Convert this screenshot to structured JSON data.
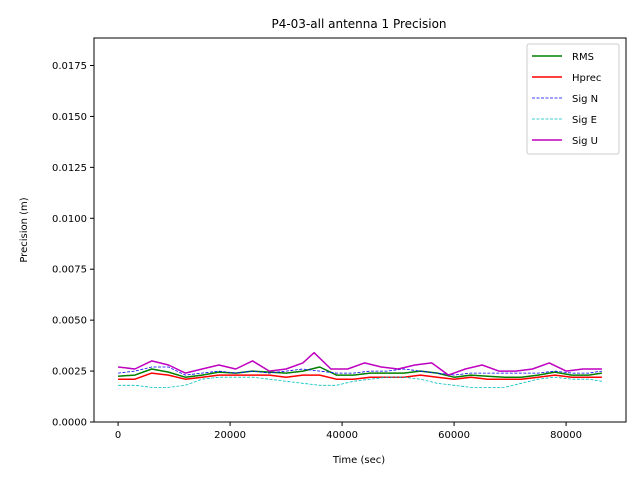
{
  "chart_data": {
    "type": "line",
    "title": "P4-03-all antenna 1 Precision",
    "xlabel": "Time (sec)",
    "ylabel": "Precision (m)",
    "xlim": [
      -4300,
      90700
    ],
    "ylim": [
      0,
      0.01885
    ],
    "xticks": [
      0,
      20000,
      40000,
      60000,
      80000
    ],
    "xtick_labels": [
      "0",
      "20000",
      "40000",
      "60000",
      "80000"
    ],
    "yticks": [
      0,
      0.0025,
      0.005,
      0.0075,
      0.01,
      0.0125,
      0.015,
      0.0175
    ],
    "ytick_labels": [
      "0.0000",
      "0.0025",
      "0.0050",
      "0.0075",
      "0.0100",
      "0.0125",
      "0.0150",
      "0.0175"
    ],
    "grid": false,
    "legend_position": "top-right",
    "series": [
      {
        "name": "RMS",
        "color": "#008000",
        "style": "solid",
        "width": 1.5,
        "x": [
          0,
          3000,
          6000,
          9000,
          12000,
          15000,
          18000,
          21000,
          24000,
          27000,
          30000,
          33000,
          36000,
          39000,
          42000,
          45000,
          48000,
          51000,
          54000,
          57000,
          60000,
          63000,
          66000,
          69000,
          72000,
          75000,
          78000,
          81000,
          84000,
          86400
        ],
        "y": [
          0.00225,
          0.0023,
          0.0026,
          0.00245,
          0.0022,
          0.0023,
          0.00245,
          0.0024,
          0.0025,
          0.00245,
          0.0024,
          0.0025,
          0.0027,
          0.0023,
          0.0023,
          0.0024,
          0.0024,
          0.0024,
          0.0025,
          0.0024,
          0.0022,
          0.0023,
          0.00225,
          0.0022,
          0.0022,
          0.0023,
          0.00245,
          0.0023,
          0.0023,
          0.0024
        ]
      },
      {
        "name": "Hprec",
        "color": "#ff0000",
        "style": "solid",
        "width": 1.5,
        "x": [
          0,
          3000,
          6000,
          9000,
          12000,
          15000,
          18000,
          21000,
          24000,
          27000,
          30000,
          33000,
          36000,
          39000,
          42000,
          45000,
          48000,
          51000,
          54000,
          57000,
          60000,
          63000,
          66000,
          69000,
          72000,
          75000,
          78000,
          81000,
          84000,
          86400
        ],
        "y": [
          0.0021,
          0.0021,
          0.0024,
          0.0023,
          0.0021,
          0.0022,
          0.0023,
          0.0023,
          0.0023,
          0.0023,
          0.0022,
          0.0023,
          0.0023,
          0.0021,
          0.0021,
          0.0022,
          0.0022,
          0.0022,
          0.0023,
          0.0022,
          0.0021,
          0.0022,
          0.0021,
          0.0021,
          0.0021,
          0.0022,
          0.0023,
          0.0022,
          0.0022,
          0.0022
        ]
      },
      {
        "name": "Sig N",
        "color": "#0000ff",
        "style": "dashed",
        "width": 0.8,
        "x": [
          0,
          3000,
          6000,
          9000,
          12000,
          15000,
          18000,
          21000,
          24000,
          27000,
          30000,
          33000,
          36000,
          39000,
          42000,
          45000,
          48000,
          51000,
          54000,
          57000,
          60000,
          63000,
          66000,
          69000,
          72000,
          75000,
          78000,
          81000,
          84000,
          86400
        ],
        "y": [
          0.0024,
          0.0025,
          0.0027,
          0.0027,
          0.0023,
          0.0024,
          0.0025,
          0.0024,
          0.0025,
          0.0024,
          0.0025,
          0.0026,
          0.0025,
          0.0024,
          0.0024,
          0.0025,
          0.0025,
          0.0026,
          0.0025,
          0.0024,
          0.0023,
          0.0024,
          0.0024,
          0.0024,
          0.0024,
          0.0024,
          0.0025,
          0.0024,
          0.0024,
          0.0025
        ]
      },
      {
        "name": "Sig E",
        "color": "#00bfbf",
        "style": "dashed",
        "width": 0.8,
        "x": [
          0,
          3000,
          6000,
          9000,
          12000,
          15000,
          18000,
          21000,
          24000,
          27000,
          30000,
          33000,
          36000,
          39000,
          42000,
          45000,
          48000,
          51000,
          54000,
          57000,
          60000,
          63000,
          66000,
          69000,
          72000,
          75000,
          78000,
          81000,
          84000,
          86400
        ],
        "y": [
          0.0018,
          0.0018,
          0.0017,
          0.0017,
          0.0018,
          0.0021,
          0.0022,
          0.0022,
          0.0022,
          0.0021,
          0.002,
          0.0019,
          0.0018,
          0.0018,
          0.002,
          0.0021,
          0.0022,
          0.0022,
          0.0021,
          0.0019,
          0.0018,
          0.0017,
          0.0017,
          0.0017,
          0.0019,
          0.0021,
          0.0022,
          0.0021,
          0.0021,
          0.002
        ]
      },
      {
        "name": "Sig U",
        "color": "#bf00bf",
        "style": "solid",
        "width": 1.5,
        "x": [
          0,
          3000,
          6000,
          9000,
          12000,
          15000,
          18000,
          21000,
          24000,
          27000,
          30000,
          33000,
          35000,
          38000,
          41000,
          44000,
          47000,
          50000,
          53000,
          56000,
          59000,
          62000,
          65000,
          68000,
          71000,
          74000,
          77000,
          80000,
          83000,
          86400
        ],
        "y": [
          0.0027,
          0.0026,
          0.003,
          0.0028,
          0.0024,
          0.0026,
          0.0028,
          0.0026,
          0.003,
          0.0025,
          0.0026,
          0.0029,
          0.0034,
          0.0026,
          0.0026,
          0.0029,
          0.0027,
          0.0026,
          0.0028,
          0.0029,
          0.0023,
          0.0026,
          0.0028,
          0.0025,
          0.0025,
          0.0026,
          0.0029,
          0.0025,
          0.0026,
          0.0026
        ]
      }
    ]
  }
}
